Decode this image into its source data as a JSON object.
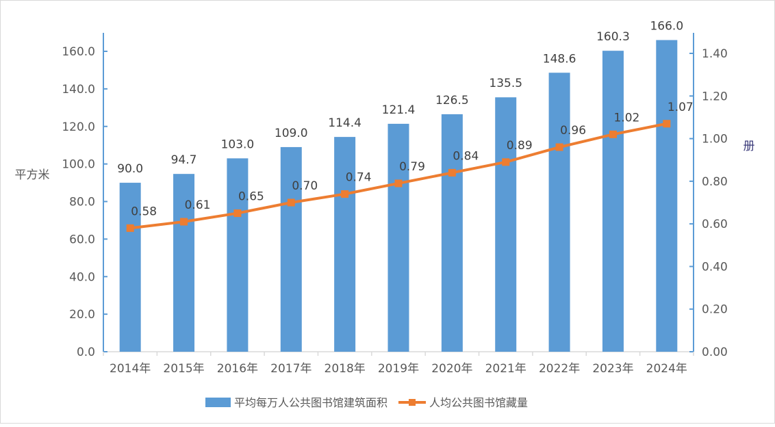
{
  "chart_data": {
    "type": "bar+line",
    "categories": [
      "2014年",
      "2015年",
      "2016年",
      "2017年",
      "2018年",
      "2019年",
      "2020年",
      "2021年",
      "2022年",
      "2023年",
      "2024年"
    ],
    "series": [
      {
        "name": "平均每万人公共图书馆建筑面积",
        "type": "bar",
        "axis": "left",
        "color": "#5b9bd5",
        "values": [
          90.0,
          94.7,
          103.0,
          109.0,
          114.4,
          121.4,
          126.5,
          135.5,
          148.6,
          160.3,
          166.0
        ],
        "labels": [
          "90.0",
          "94.7",
          "103.0",
          "109.0",
          "114.4",
          "121.4",
          "126.5",
          "135.5",
          "148.6",
          "160.3",
          "166.0"
        ]
      },
      {
        "name": "人均公共图书馆藏量",
        "type": "line",
        "axis": "right",
        "color": "#ed7d31",
        "values": [
          0.58,
          0.61,
          0.65,
          0.7,
          0.74,
          0.79,
          0.84,
          0.89,
          0.96,
          1.02,
          1.07
        ],
        "labels": [
          "0.58",
          "0.61",
          "0.65",
          "0.70",
          "0.74",
          "0.79",
          "0.84",
          "0.89",
          "0.96",
          "1.02",
          "1.07"
        ]
      }
    ],
    "y_left": {
      "label": "平方米",
      "ylim": [
        0,
        160
      ],
      "ticks": [
        "0.0",
        "20.0",
        "40.0",
        "60.0",
        "80.0",
        "100.0",
        "120.0",
        "140.0",
        "160.0"
      ]
    },
    "y_right": {
      "label": "册",
      "ylim": [
        0,
        1.4
      ],
      "ticks": [
        "0.00",
        "0.20",
        "0.40",
        "0.60",
        "0.80",
        "1.00",
        "1.20",
        "1.40"
      ]
    },
    "grid": false,
    "legend": "bottom",
    "axis_color": "#5b9bd5",
    "text_color": "#595959"
  }
}
